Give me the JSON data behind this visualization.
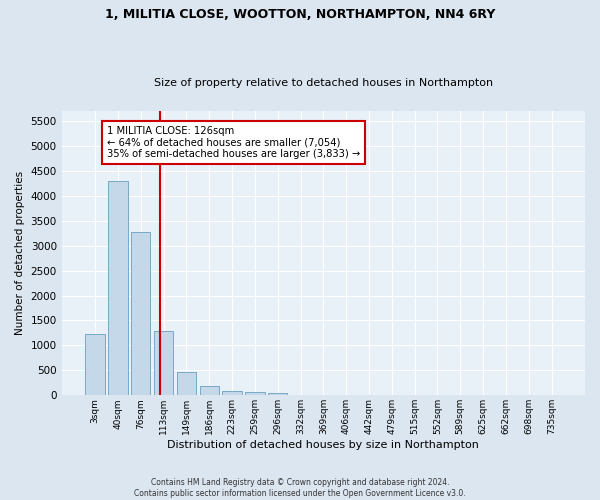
{
  "title": "1, MILITIA CLOSE, WOOTTON, NORTHAMPTON, NN4 6RY",
  "subtitle": "Size of property relative to detached houses in Northampton",
  "xlabel": "Distribution of detached houses by size in Northampton",
  "ylabel": "Number of detached properties",
  "bar_labels": [
    "3sqm",
    "40sqm",
    "76sqm",
    "113sqm",
    "149sqm",
    "186sqm",
    "223sqm",
    "259sqm",
    "296sqm",
    "332sqm",
    "369sqm",
    "406sqm",
    "442sqm",
    "479sqm",
    "515sqm",
    "552sqm",
    "589sqm",
    "625sqm",
    "662sqm",
    "698sqm",
    "735sqm"
  ],
  "bar_values": [
    1230,
    4300,
    3280,
    1290,
    470,
    190,
    95,
    65,
    40,
    0,
    0,
    0,
    0,
    0,
    0,
    0,
    0,
    0,
    0,
    0,
    0
  ],
  "bar_color": "#c5d8ea",
  "bar_edgecolor": "#6a9fc0",
  "ylim": [
    0,
    5700
  ],
  "yticks": [
    0,
    500,
    1000,
    1500,
    2000,
    2500,
    3000,
    3500,
    4000,
    4500,
    5000,
    5500
  ],
  "property_line_x": 2.86,
  "property_line_color": "#cc0000",
  "annotation_text": "1 MILITIA CLOSE: 126sqm\n← 64% of detached houses are smaller (7,054)\n35% of semi-detached houses are larger (3,833) →",
  "footnote": "Contains HM Land Registry data © Crown copyright and database right 2024.\nContains public sector information licensed under the Open Government Licence v3.0.",
  "fig_facecolor": "#dce6f0",
  "axes_facecolor": "#e8f0f8"
}
